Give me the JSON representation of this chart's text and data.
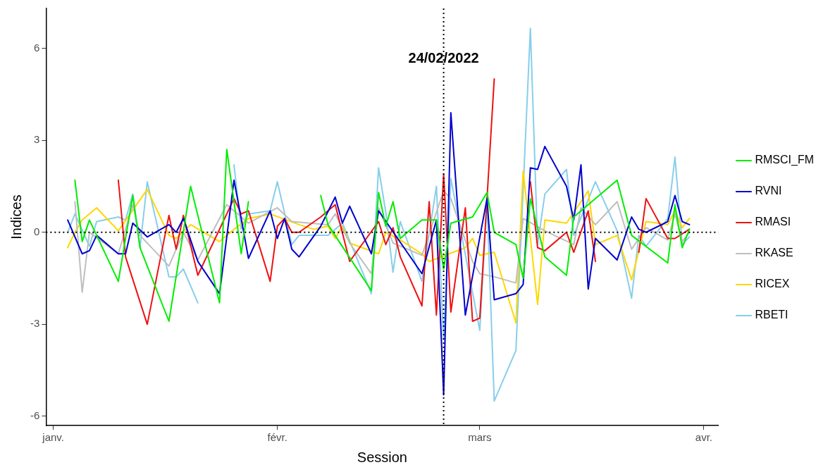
{
  "chart_data": {
    "type": "line",
    "xlabel": "Session",
    "ylabel": "Indices",
    "legend": "right",
    "line_style": "solid",
    "marker": "none",
    "xlim": [
      "2021-12-31",
      "2022-04-03"
    ],
    "xticks": [
      {
        "value": "2022-01-01",
        "label": "janv."
      },
      {
        "value": "2022-02-01",
        "label": "févr."
      },
      {
        "value": "2022-03-01",
        "label": "mars"
      },
      {
        "value": "2022-04-01",
        "label": "avr."
      }
    ],
    "ylim": [
      -6.3,
      7.3
    ],
    "yticks": [
      -6,
      -3,
      0,
      3,
      6
    ],
    "ref_lines": [
      {
        "axis": "x",
        "value": "2022-02-24",
        "label": "24/02/2022",
        "color": "#000000",
        "line_style": "dotted"
      },
      {
        "axis": "y",
        "value": 0,
        "color": "#000000",
        "line_style": "dotted"
      }
    ],
    "series": [
      {
        "name": "RMSCI_FM",
        "color": "#00ee00",
        "x": [
          "2022-01-04",
          "2022-01-05",
          "2022-01-06",
          "2022-01-10",
          "2022-01-12",
          "2022-01-13",
          "2022-01-17",
          "2022-01-20",
          "2022-01-24",
          "2022-01-25",
          "2022-01-27",
          "2022-01-28",
          "2022-02-02",
          "2022-02-07",
          "2022-02-08",
          "2022-02-14",
          "2022-02-15",
          "2022-02-16",
          "2022-02-17",
          "2022-02-18",
          "2022-02-21",
          "2022-02-23",
          "2022-02-24",
          "2022-02-25",
          "2022-02-28",
          "2022-03-02",
          "2022-03-03",
          "2022-03-06",
          "2022-03-07",
          "2022-03-08",
          "2022-03-10",
          "2022-03-13",
          "2022-03-14",
          "2022-03-20",
          "2022-03-22",
          "2022-03-27",
          "2022-03-28",
          "2022-03-29",
          "2022-03-30"
        ],
        "values": [
          1.7,
          -0.3,
          0.4,
          -1.6,
          1.2,
          -0.5,
          -2.9,
          1.5,
          -2.3,
          2.7,
          -0.7,
          1.0,
          null,
          1.2,
          0.25,
          -1.9,
          1.3,
          0.2,
          1.0,
          -0.2,
          0.4,
          0.4,
          -1.2,
          0.3,
          0.5,
          1.3,
          0,
          -0.4,
          -1.5,
          1.1,
          -0.8,
          -1.4,
          0.5,
          1.7,
          -0.1,
          -1.0,
          0.9,
          -0.5,
          0.1
        ]
      },
      {
        "name": "RVNI",
        "color": "#0000cd",
        "x": [
          "2022-01-03",
          "2022-01-05",
          "2022-01-06",
          "2022-01-07",
          "2022-01-10",
          "2022-01-11",
          "2022-01-12",
          "2022-01-14",
          "2022-01-17",
          "2022-01-18",
          "2022-01-19",
          "2022-01-21",
          "2022-01-24",
          "2022-01-26",
          "2022-01-27",
          "2022-01-28",
          "2022-01-31",
          "2022-02-01",
          "2022-02-02",
          "2022-02-03",
          "2022-02-04",
          "2022-02-07",
          "2022-02-09",
          "2022-02-10",
          "2022-02-11",
          "2022-02-14",
          "2022-02-15",
          "2022-02-21",
          "2022-02-23",
          "2022-02-24",
          "2022-02-25",
          "2022-02-27",
          "2022-03-02",
          "2022-03-03",
          "2022-03-06",
          "2022-03-07",
          "2022-03-08",
          "2022-03-09",
          "2022-03-10",
          "2022-03-13",
          "2022-03-14",
          "2022-03-15",
          "2022-03-16",
          "2022-03-17",
          "2022-03-20",
          "2022-03-22",
          "2022-03-23",
          "2022-03-24",
          "2022-03-27",
          "2022-03-28",
          "2022-03-29",
          "2022-03-30"
        ],
        "values": [
          0.4,
          -0.7,
          -0.6,
          -0.1,
          -0.7,
          -0.7,
          0.3,
          -0.15,
          0.25,
          0,
          0.45,
          -0.95,
          -2.0,
          1.7,
          0.45,
          -0.85,
          0.7,
          -0.2,
          0.45,
          -0.55,
          -0.8,
          0.2,
          1.15,
          0.3,
          0.85,
          -0.7,
          0.7,
          -1.35,
          0.4,
          -5.3,
          3.9,
          -2.7,
          1.1,
          -2.2,
          -2.0,
          -1.7,
          2.1,
          2.05,
          2.8,
          1.5,
          0.4,
          2.2,
          -1.85,
          -0.2,
          -0.9,
          0.5,
          0.1,
          0,
          0.35,
          1.2,
          0.35,
          0.25
        ]
      },
      {
        "name": "RMASI",
        "color": "#ee1111",
        "x": [
          "2022-01-10",
          "2022-01-11",
          "2022-01-14",
          "2022-01-17",
          "2022-01-18",
          "2022-01-19",
          "2022-01-21",
          "2022-01-26",
          "2022-01-27",
          "2022-01-28",
          "2022-01-31",
          "2022-02-01",
          "2022-02-02",
          "2022-02-03",
          "2022-02-04",
          "2022-02-07",
          "2022-02-09",
          "2022-02-11",
          "2022-02-15",
          "2022-02-16",
          "2022-02-17",
          "2022-02-18",
          "2022-02-21",
          "2022-02-22",
          "2022-02-23",
          "2022-02-24",
          "2022-02-25",
          "2022-02-27",
          "2022-02-28",
          "2022-03-01",
          "2022-03-03",
          "2022-03-05",
          "2022-03-08",
          "2022-03-09",
          "2022-03-10",
          "2022-03-13",
          "2022-03-14",
          "2022-03-16",
          "2022-03-17",
          "2022-03-20",
          "2022-03-23",
          "2022-03-24",
          "2022-03-27",
          "2022-03-28",
          "2022-03-30"
        ],
        "values": [
          1.7,
          -0.8,
          -3.0,
          0.55,
          -0.55,
          0.55,
          -1.4,
          1.1,
          0.6,
          0.7,
          -1.6,
          0.2,
          0.45,
          0,
          0,
          0.5,
          0.9,
          -0.95,
          0.35,
          -0.4,
          0.15,
          -0.8,
          -2.4,
          1.0,
          -2.7,
          1.9,
          -2.6,
          0.8,
          -2.9,
          -2.8,
          5.0,
          null,
          1.65,
          -0.5,
          -0.6,
          0,
          -0.65,
          0.7,
          -0.95,
          null,
          -0.65,
          1.1,
          -0.2,
          -0.2,
          0.1
        ]
      },
      {
        "name": "RKASE",
        "color": "#bebebe",
        "x": [
          "2022-01-04",
          "2022-01-05",
          "2022-01-06",
          "2022-01-10",
          "2022-01-12",
          "2022-01-13",
          "2022-01-17",
          "2022-01-19",
          "2022-01-21",
          "2022-01-25",
          "2022-01-28",
          "2022-02-01",
          "2022-02-03",
          "2022-02-08",
          "2022-02-09",
          "2022-02-11",
          "2022-02-14",
          "2022-02-15",
          "2022-02-17",
          "2022-02-21",
          "2022-02-24",
          "2022-02-25",
          "2022-02-28",
          "2022-03-01",
          "2022-03-03",
          "2022-03-06",
          "2022-03-07",
          "2022-03-10",
          "2022-03-14",
          "2022-03-15",
          "2022-03-17",
          "2022-03-20",
          "2022-03-22",
          "2022-03-24",
          "2022-03-27",
          "2022-03-28",
          "2022-03-29",
          "2022-03-30"
        ],
        "values": [
          1.0,
          -1.95,
          0,
          -0.7,
          0.9,
          -0.1,
          -1.1,
          0,
          -0.9,
          0.9,
          0.3,
          0.8,
          0.35,
          0.25,
          0.6,
          -0.35,
          -1.35,
          0.8,
          -0.35,
          -0.75,
          1.35,
          1.1,
          -0.95,
          -1.35,
          -1.45,
          -1.65,
          0.45,
          0.05,
          -0.4,
          0.8,
          0.25,
          1.0,
          -0.55,
          0.15,
          -0.25,
          0.6,
          -0.3,
          0
        ]
      },
      {
        "name": "RICEX",
        "color": "#ffd700",
        "x": [
          "2022-01-03",
          "2022-01-04",
          "2022-01-05",
          "2022-01-07",
          "2022-01-10",
          "2022-01-14",
          "2022-01-17",
          "2022-01-18",
          "2022-01-20",
          "2022-01-24",
          "2022-01-26",
          "2022-01-28",
          "2022-01-31",
          "2022-02-04",
          "2022-02-06",
          "2022-02-08",
          "2022-02-09",
          "2022-02-10",
          "2022-02-11",
          "2022-02-15",
          "2022-02-16",
          "2022-02-18",
          "2022-02-21",
          "2022-02-22",
          "2022-02-27",
          "2022-02-28",
          "2022-03-01",
          "2022-03-03",
          "2022-03-06",
          "2022-03-07",
          "2022-03-09",
          "2022-03-10",
          "2022-03-13",
          "2022-03-16",
          "2022-03-17",
          "2022-03-20",
          "2022-03-22",
          "2022-03-24",
          "2022-03-27",
          "2022-03-28",
          "2022-03-29",
          "2022-03-30"
        ],
        "values": [
          -0.5,
          0,
          0.4,
          0.8,
          0.05,
          1.4,
          -0.1,
          -0.2,
          0.25,
          -0.3,
          0.1,
          0.45,
          0.6,
          0.25,
          0.1,
          0.2,
          -0.2,
          0.2,
          -0.35,
          -0.7,
          0,
          -0.25,
          -0.7,
          -0.95,
          -0.5,
          -0.2,
          -0.75,
          -0.65,
          -2.95,
          2.0,
          -2.35,
          0.4,
          0.3,
          1.35,
          -0.4,
          -0.1,
          -1.55,
          0.35,
          0.25,
          0.7,
          0.15,
          0.45
        ]
      },
      {
        "name": "RBETI",
        "color": "#87ceeb",
        "x": [
          "2022-01-03",
          "2022-01-04",
          "2022-01-06",
          "2022-01-07",
          "2022-01-10",
          "2022-01-11",
          "2022-01-12",
          "2022-01-13",
          "2022-01-14",
          "2022-01-17",
          "2022-01-18",
          "2022-01-19",
          "2022-01-21",
          "2022-01-24",
          "2022-01-26",
          "2022-01-27",
          "2022-01-28",
          "2022-01-31",
          "2022-02-01",
          "2022-02-03",
          "2022-02-04",
          "2022-02-08",
          "2022-02-10",
          "2022-02-14",
          "2022-02-15",
          "2022-02-16",
          "2022-02-17",
          "2022-02-18",
          "2022-02-21",
          "2022-02-23",
          "2022-02-24",
          "2022-02-25",
          "2022-03-01",
          "2022-03-02",
          "2022-03-03",
          "2022-03-06",
          "2022-03-08",
          "2022-03-09",
          "2022-03-10",
          "2022-03-13",
          "2022-03-14",
          "2022-03-17",
          "2022-03-20",
          "2022-03-22",
          "2022-03-23",
          "2022-03-24",
          "2022-03-27",
          "2022-03-28",
          "2022-03-29",
          "2022-03-30"
        ],
        "values": [
          0,
          0.6,
          -0.45,
          0.35,
          0.5,
          0.4,
          1.25,
          -0.5,
          1.65,
          -1.45,
          -1.45,
          -1.2,
          -2.3,
          null,
          2.2,
          0.1,
          0.6,
          0.7,
          1.65,
          -0.4,
          -0.1,
          -0.1,
          0.3,
          -2.0,
          2.1,
          0.65,
          -1.3,
          0.35,
          -1.6,
          1.5,
          -3.5,
          1.75,
          -3.2,
          1.0,
          -5.5,
          -3.85,
          6.65,
          -0.4,
          1.25,
          2.05,
          -0.1,
          1.65,
          0.05,
          -2.15,
          -0.1,
          -0.45,
          0.45,
          2.45,
          -0.4,
          -0.15
        ]
      }
    ]
  }
}
